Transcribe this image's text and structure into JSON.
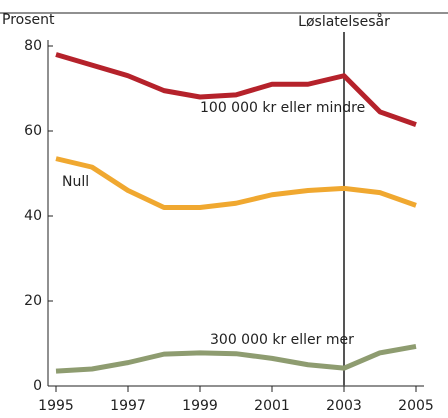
{
  "chart_data": {
    "type": "line",
    "y_label": "Prosent",
    "x": [
      1995,
      1996,
      1997,
      1998,
      1999,
      2000,
      2001,
      2002,
      2003,
      2004,
      2005
    ],
    "xlim": [
      1995,
      2005
    ],
    "xticks": [
      1995,
      1997,
      1999,
      2001,
      2003,
      2005
    ],
    "ylim": [
      0,
      80
    ],
    "yticks": [
      0,
      20,
      40,
      60,
      80
    ],
    "series": [
      {
        "name": "100 000 kr eller mindre",
        "color": "#b5222b",
        "values": [
          78,
          75.5,
          73,
          69.5,
          68,
          68.5,
          71,
          71,
          73,
          64.5,
          61.5
        ]
      },
      {
        "name": "Null",
        "color": "#f0a830",
        "values": [
          53.5,
          51.5,
          46,
          42,
          42,
          43,
          45,
          46,
          46.5,
          45.5,
          42.5
        ]
      },
      {
        "name": "300 000 kr eller mer",
        "color": "#8e9c70",
        "values": [
          3.5,
          4,
          5.5,
          7.5,
          7.8,
          7.6,
          6.5,
          5,
          4.2,
          7.8,
          9.3
        ]
      }
    ],
    "vline": {
      "x": 2003,
      "label": "Løslatelsesår"
    }
  }
}
